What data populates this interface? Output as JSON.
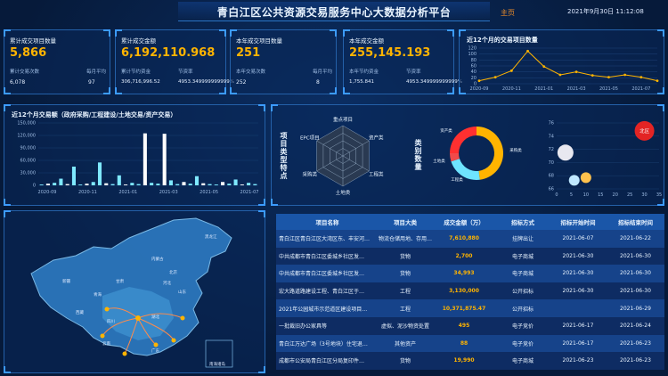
{
  "header": {
    "title": "青白江区公共资源交易服务中心大数据分析平台",
    "home": "主页",
    "datetime": "2021年9月30日 11:12:08"
  },
  "stats": [
    {
      "label": "累计成交项目数量",
      "value": "5,866",
      "sub1_label": "累计交易次数",
      "sub1_value": "6,078",
      "sub2_label": "每月平均",
      "sub2_value": "97"
    },
    {
      "label": "累计成交金额",
      "value": "6,192,110.968",
      "sub1_label": "累计节约资金",
      "sub1_value": "306,716,996.52",
      "sub2_label": "节资率",
      "sub2_value": "4953.349999999999%"
    },
    {
      "label": "本年成交项目数量",
      "value": "251",
      "sub1_label": "本年交易次数",
      "sub1_value": "252",
      "sub2_label": "每月平均",
      "sub2_value": "8"
    },
    {
      "label": "本年成交金额",
      "value": "255,145.193",
      "sub1_label": "本年节约资金",
      "sub1_value": "1,755.841",
      "sub2_label": "节资率",
      "sub2_value": "4953.349999999999%"
    }
  ],
  "line_chart": {
    "title": "近12个月的交易项目数量",
    "chart_data": {
      "type": "line",
      "x": [
        "2020-09",
        "2020-10",
        "2020-11",
        "2020-12",
        "2021-01",
        "2021-02",
        "2021-03",
        "2021-04",
        "2021-05",
        "2021-06",
        "2021-07",
        "2021-08"
      ],
      "values": [
        10,
        22,
        44,
        110,
        58,
        30,
        40,
        28,
        22,
        30,
        22,
        10
      ],
      "xticks": [
        "2020-09",
        "2020-11",
        "2021-01",
        "2021-03",
        "2021-05",
        "2021-07"
      ],
      "yticks": [
        "0",
        "20",
        "40",
        "60",
        "80",
        "100",
        "120"
      ],
      "ylim": [
        0,
        120
      ]
    }
  },
  "bar_chart": {
    "title": "近12个月交易额（政府采购/工程建设/土地交易/资产交易）",
    "chart_data": {
      "type": "bar",
      "yticks": [
        "0",
        "30,000",
        "60,000",
        "90,000",
        "120,000",
        "150,000"
      ],
      "ylim": [
        0,
        150000
      ],
      "xticks": [
        "2020-09",
        "2020-11",
        "2021-01",
        "2021-03",
        "2021-05",
        "2021-07"
      ],
      "values": [
        2000,
        4000,
        6000,
        16000,
        3000,
        45000,
        2000,
        4000,
        8000,
        55000,
        5000,
        3000,
        24000,
        2000,
        6000,
        3000,
        125000,
        6000,
        4000,
        124000,
        12000,
        3000,
        8000,
        4000,
        22000,
        5000,
        3000,
        2000,
        8000,
        4000,
        14000,
        2000,
        6000,
        3000
      ]
    }
  },
  "radar": {
    "side_label": "项目类型特点",
    "axes": [
      "重点项目",
      "资产类",
      "工程类",
      "土地类",
      "采购类",
      "EPC项目"
    ]
  },
  "donut": {
    "side_label": "类别数量",
    "legend": [
      "采购类",
      "工程类",
      "土地类",
      "资产类"
    ],
    "colors": [
      "#ffb400",
      "#6ee4ff",
      "#f04a4a",
      "#ff3030"
    ],
    "chart_data": {
      "type": "pie",
      "labels": [
        "采购类",
        "工程类",
        "土地类",
        "资产类"
      ],
      "values": [
        48,
        22,
        5,
        25
      ]
    }
  },
  "scatter": {
    "bubble_label": "北区",
    "chart_data": {
      "type": "scatter",
      "xticks": [
        "0",
        "5",
        "10",
        "15",
        "20",
        "25",
        "30",
        "35"
      ],
      "yticks": [
        "66",
        "68",
        "70",
        "72",
        "74",
        "76"
      ],
      "points": [
        {
          "x": 3,
          "y": 71.5
        },
        {
          "x": 6,
          "y": 67.3
        },
        {
          "x": 10,
          "y": 67.7
        },
        {
          "x": 30,
          "y": 74.8
        }
      ]
    }
  },
  "map": {
    "labels": [
      "黑龙江",
      "内蒙古",
      "新疆",
      "西藏",
      "四川",
      "青海",
      "甘肃",
      "北京",
      "河北",
      "山东",
      "湖北",
      "广东",
      "云南",
      "南海诸岛"
    ]
  },
  "table": {
    "headers": [
      "项目名称",
      "项目大类",
      "成交金额（万）",
      "招标方式",
      "招标开始时间",
      "招标结束时间"
    ],
    "rows": [
      [
        "青白江区青白江区大湾区东、丰安河…",
        "物流仓储用地、存用…",
        "7,610,880",
        "挂牌出让",
        "2021-06-07",
        "2021-06-22"
      ],
      [
        "中共成都市青白江区委城乡社区发…",
        "货物",
        "2,700",
        "电子商城",
        "2021-06-30",
        "2021-06-30"
      ],
      [
        "中共成都市青白江区委城乡社区发…",
        "货物",
        "34,993",
        "电子商城",
        "2021-06-30",
        "2021-06-30"
      ],
      [
        "宏大路道路建设工程、青白江区于…",
        "工程",
        "3,130,000",
        "公开招标",
        "2021-06-30",
        "2021-06-30"
      ],
      [
        "2021年公园城市示范道区建设项目…",
        "工程",
        "10,371,875.47",
        "公开招标",
        "",
        "2021-06-29"
      ],
      [
        "一批裁旧办公家具等",
        "虚拟、泥沙物资处置",
        "495",
        "电子竞价",
        "2021-06-17",
        "2021-06-24"
      ],
      [
        "青白江万达广场（3号地块）住宅退…",
        "其他资产",
        "88",
        "电子竞价",
        "2021-06-17",
        "2021-06-23"
      ],
      [
        "成都市公安局青白江区分局复印件…",
        "货物",
        "19,990",
        "电子商城",
        "2021-06-23",
        "2021-06-23"
      ]
    ]
  }
}
